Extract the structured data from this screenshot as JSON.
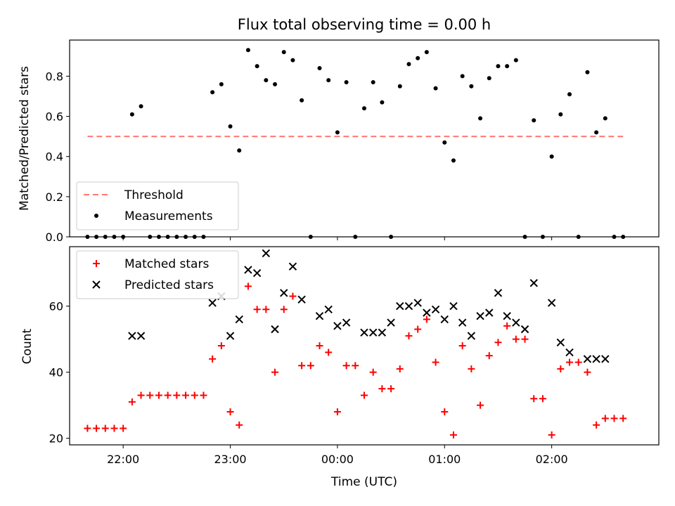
{
  "chart_data": [
    {
      "type": "scatter",
      "title": "Flux total observing time = 0.00 h",
      "ylabel": "Matched/Predicted stars",
      "xlabel": "",
      "xlim": [
        "21:30",
        "03:00"
      ],
      "ylim": [
        0,
        0.98
      ],
      "yticks": [
        0.0,
        0.2,
        0.4,
        0.6,
        0.8
      ],
      "ytick_labels": [
        "0.0",
        "0.2",
        "0.4",
        "0.6",
        "0.8"
      ],
      "xticks": [
        "22:00",
        "23:00",
        "00:00",
        "01:00",
        "02:00"
      ],
      "legend": {
        "placement": "lower-left"
      },
      "series": [
        {
          "name": "Threshold",
          "kind": "line",
          "style": "dashed",
          "color": "#ff7777",
          "x": [
            "21:40",
            "02:40"
          ],
          "y": [
            0.5,
            0.5
          ]
        },
        {
          "name": "Measurements",
          "kind": "scatter",
          "marker": "dot",
          "color": "#000000",
          "x": [
            "21:40",
            "21:45",
            "21:50",
            "21:55",
            "22:00",
            "22:05",
            "22:10",
            "22:15",
            "22:20",
            "22:25",
            "22:30",
            "22:35",
            "22:40",
            "22:45",
            "22:50",
            "22:55",
            "23:00",
            "23:05",
            "23:10",
            "23:15",
            "23:20",
            "23:25",
            "23:30",
            "23:35",
            "23:40",
            "23:45",
            "23:50",
            "23:55",
            "00:00",
            "00:05",
            "00:10",
            "00:15",
            "00:20",
            "00:25",
            "00:30",
            "00:35",
            "00:40",
            "00:45",
            "00:50",
            "00:55",
            "01:00",
            "01:05",
            "01:10",
            "01:15",
            "01:20",
            "01:25",
            "01:30",
            "01:35",
            "01:40",
            "01:45",
            "01:50",
            "01:55",
            "02:00",
            "02:05",
            "02:10",
            "02:15",
            "02:20",
            "02:25",
            "02:30",
            "02:35",
            "02:40"
          ],
          "y": [
            0.0,
            0.0,
            0.0,
            0.0,
            0.0,
            0.61,
            0.65,
            0.0,
            0.0,
            0.0,
            0.0,
            0.0,
            0.0,
            0.0,
            0.72,
            0.76,
            0.55,
            0.43,
            0.93,
            0.85,
            0.78,
            0.76,
            0.92,
            0.88,
            0.68,
            0.0,
            0.84,
            0.78,
            0.52,
            0.77,
            0.0,
            0.64,
            0.77,
            0.67,
            0.0,
            0.75,
            0.86,
            0.89,
            0.92,
            0.74,
            0.47,
            0.38,
            0.8,
            0.75,
            0.59,
            0.79,
            0.85,
            0.85,
            0.88,
            0.0,
            0.58,
            0.0,
            0.4,
            0.61,
            0.71,
            0.0,
            0.82,
            0.52,
            0.59,
            0.0,
            0.0
          ]
        }
      ]
    },
    {
      "type": "scatter",
      "title": "",
      "xlabel": "Time (UTC)",
      "ylabel": "Count",
      "xlim": [
        "21:30",
        "03:00"
      ],
      "ylim": [
        18,
        78
      ],
      "yticks": [
        20,
        40,
        60
      ],
      "ytick_labels": [
        "20",
        "40",
        "60"
      ],
      "xticks": [
        "22:00",
        "23:00",
        "00:00",
        "01:00",
        "02:00"
      ],
      "xtick_labels": [
        "22:00",
        "23:00",
        "00:00",
        "01:00",
        "02:00"
      ],
      "legend": {
        "placement": "upper-left"
      },
      "series": [
        {
          "name": "Matched stars",
          "kind": "scatter",
          "marker": "plus",
          "color": "#ff0000",
          "x": [
            "21:40",
            "21:45",
            "21:50",
            "21:55",
            "22:00",
            "22:05",
            "22:10",
            "22:15",
            "22:20",
            "22:25",
            "22:30",
            "22:35",
            "22:40",
            "22:45",
            "22:50",
            "22:55",
            "23:00",
            "23:05",
            "23:10",
            "23:15",
            "23:20",
            "23:25",
            "23:30",
            "23:35",
            "23:40",
            "23:45",
            "23:50",
            "23:55",
            "00:00",
            "00:05",
            "00:10",
            "00:15",
            "00:20",
            "00:25",
            "00:30",
            "00:35",
            "00:40",
            "00:45",
            "00:50",
            "00:55",
            "01:00",
            "01:05",
            "01:10",
            "01:15",
            "01:20",
            "01:25",
            "01:30",
            "01:35",
            "01:40",
            "01:45",
            "01:50",
            "01:55",
            "02:00",
            "02:05",
            "02:10",
            "02:15",
            "02:20",
            "02:25",
            "02:30",
            "02:35",
            "02:40"
          ],
          "y": [
            23,
            23,
            23,
            23,
            23,
            31,
            33,
            33,
            33,
            33,
            33,
            33,
            33,
            33,
            44,
            48,
            28,
            24,
            66,
            59,
            59,
            40,
            59,
            63,
            42,
            42,
            48,
            46,
            28,
            42,
            42,
            33,
            40,
            35,
            35,
            41,
            51,
            53,
            56,
            43,
            28,
            21,
            48,
            41,
            30,
            45,
            49,
            54,
            50,
            50,
            32,
            32,
            21,
            41,
            43,
            43,
            40,
            24,
            26,
            26,
            26
          ]
        },
        {
          "name": "Predicted stars",
          "kind": "scatter",
          "marker": "x",
          "color": "#000000",
          "x": [
            "22:05",
            "22:10",
            "22:50",
            "22:55",
            "23:00",
            "23:05",
            "23:10",
            "23:15",
            "23:20",
            "23:25",
            "23:30",
            "23:35",
            "23:40",
            "23:50",
            "23:55",
            "00:00",
            "00:05",
            "00:15",
            "00:20",
            "00:25",
            "00:30",
            "00:35",
            "00:40",
            "00:45",
            "00:50",
            "00:55",
            "01:00",
            "01:05",
            "01:10",
            "01:15",
            "01:20",
            "01:25",
            "01:30",
            "01:35",
            "01:40",
            "01:45",
            "01:50",
            "02:00",
            "02:05",
            "02:10",
            "02:20",
            "02:25",
            "02:30"
          ],
          "y": [
            51,
            51,
            61,
            63,
            51,
            56,
            71,
            70,
            76,
            53,
            64,
            72,
            62,
            57,
            59,
            54,
            55,
            52,
            52,
            52,
            55,
            60,
            60,
            61,
            58,
            59,
            56,
            60,
            55,
            51,
            57,
            58,
            64,
            57,
            55,
            53,
            67,
            61,
            49,
            46,
            44,
            44,
            44
          ]
        }
      ]
    }
  ]
}
